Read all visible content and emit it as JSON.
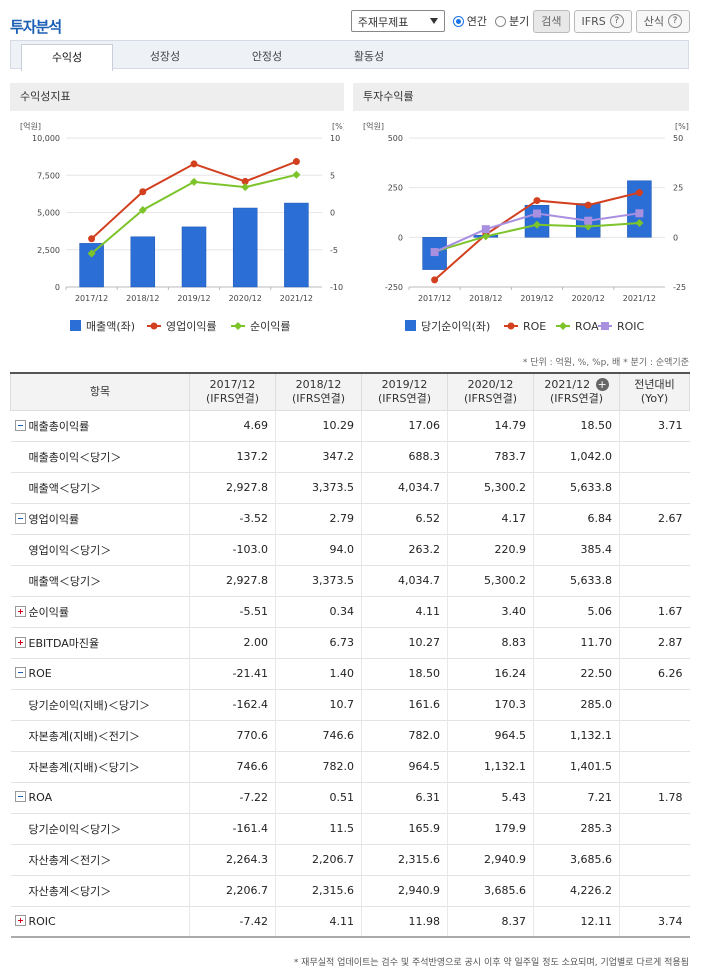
{
  "page": {
    "title": "투자분석"
  },
  "controls": {
    "statement_select": "주재무제표",
    "radio_annual": "연간",
    "radio_quarter": "분기",
    "search_button": "검색",
    "ifrs_button": "IFRS",
    "formula_button": "산식"
  },
  "tabs": [
    "수익성",
    "성장성",
    "안정성",
    "활동성"
  ],
  "chart_left": {
    "header": "수익성지표",
    "unit_left": "[억원]",
    "unit_right": "[%]",
    "legend": [
      "매출액(좌)",
      "영업이익률",
      "순이익률"
    ]
  },
  "chart_right": {
    "header": "투자수익률",
    "unit_left": "[억원]",
    "unit_right": "[%]",
    "legend": [
      "당기순이익(좌)",
      "ROE",
      "ROA",
      "ROIC"
    ]
  },
  "chart_data": [
    {
      "type": "bar+line",
      "title": "수익성지표",
      "categories": [
        "2017/12",
        "2018/12",
        "2019/12",
        "2020/12",
        "2021/12"
      ],
      "ylim_left": [
        0,
        10000
      ],
      "ylim_right": [
        -10,
        10
      ],
      "yticks_left": [
        "0",
        "2,500",
        "5,000",
        "7,500",
        "10,000"
      ],
      "yticks_right": [
        "-10",
        "-5",
        "0",
        "5",
        "10"
      ],
      "bar_series": {
        "name": "매출액(좌)",
        "values": [
          2927.8,
          3373.5,
          4034.7,
          5300.2,
          5633.8
        ],
        "color": "#2b6fd6"
      },
      "line_series": [
        {
          "name": "영업이익률",
          "values": [
            -3.52,
            2.79,
            6.52,
            4.17,
            6.84
          ],
          "color": "#d2401f"
        },
        {
          "name": "순이익률",
          "values": [
            -5.51,
            0.34,
            4.11,
            3.4,
            5.06
          ],
          "color": "#7cc42a"
        }
      ]
    },
    {
      "type": "bar+line",
      "title": "투자수익률",
      "categories": [
        "2017/12",
        "2018/12",
        "2019/12",
        "2020/12",
        "2021/12"
      ],
      "ylim_left": [
        -250,
        500
      ],
      "ylim_right": [
        -25,
        50
      ],
      "yticks_left": [
        "-250",
        "0",
        "250",
        "500"
      ],
      "yticks_right": [
        "-25",
        "0",
        "25",
        "50"
      ],
      "bar_series": {
        "name": "당기순이익(좌)",
        "values": [
          -162.4,
          10.7,
          161.6,
          170.3,
          285.0
        ],
        "color": "#2b6fd6"
      },
      "line_series": [
        {
          "name": "ROE",
          "values": [
            -21.41,
            1.4,
            18.5,
            16.24,
            22.5
          ],
          "color": "#d2401f"
        },
        {
          "name": "ROA",
          "values": [
            -7.22,
            0.51,
            6.31,
            5.43,
            7.21
          ],
          "color": "#7cc42a"
        },
        {
          "name": "ROIC",
          "values": [
            -7.42,
            4.11,
            11.98,
            8.37,
            12.11
          ],
          "color": "#a98fe0"
        }
      ]
    }
  ],
  "unit_note": "* 단위 : 억원, %, %p, 배   * 분기 : 순액기준",
  "table": {
    "item_header": "항목",
    "columns": [
      {
        "year": "2017/12",
        "basis": "(IFRS연결)"
      },
      {
        "year": "2018/12",
        "basis": "(IFRS연결)"
      },
      {
        "year": "2019/12",
        "basis": "(IFRS연결)"
      },
      {
        "year": "2020/12",
        "basis": "(IFRS연결)"
      },
      {
        "year": "2021/12",
        "basis": "(IFRS연결)"
      }
    ],
    "yoy_header": {
      "line1": "전년대비",
      "line2": "(YoY)"
    },
    "rows": [
      {
        "label": "매출총이익률",
        "toggle": "minus",
        "values": [
          "4.69",
          "10.29",
          "17.06",
          "14.79",
          "18.50"
        ],
        "yoy": "3.71"
      },
      {
        "label": "매출총이익＜당기＞",
        "sub": true,
        "values": [
          "137.2",
          "347.2",
          "688.3",
          "783.7",
          "1,042.0"
        ],
        "yoy": ""
      },
      {
        "label": "매출액＜당기＞",
        "sub": true,
        "values": [
          "2,927.8",
          "3,373.5",
          "4,034.7",
          "5,300.2",
          "5,633.8"
        ],
        "yoy": ""
      },
      {
        "label": "영업이익률",
        "toggle": "minus",
        "values": [
          "-3.52",
          "2.79",
          "6.52",
          "4.17",
          "6.84"
        ],
        "yoy": "2.67"
      },
      {
        "label": "영업이익＜당기＞",
        "sub": true,
        "values": [
          "-103.0",
          "94.0",
          "263.2",
          "220.9",
          "385.4"
        ],
        "yoy": ""
      },
      {
        "label": "매출액＜당기＞",
        "sub": true,
        "values": [
          "2,927.8",
          "3,373.5",
          "4,034.7",
          "5,300.2",
          "5,633.8"
        ],
        "yoy": ""
      },
      {
        "label": "순이익률",
        "toggle": "plus",
        "values": [
          "-5.51",
          "0.34",
          "4.11",
          "3.40",
          "5.06"
        ],
        "yoy": "1.67"
      },
      {
        "label": "EBITDA마진율",
        "toggle": "plus",
        "values": [
          "2.00",
          "6.73",
          "10.27",
          "8.83",
          "11.70"
        ],
        "yoy": "2.87"
      },
      {
        "label": "ROE",
        "toggle": "minus",
        "values": [
          "-21.41",
          "1.40",
          "18.50",
          "16.24",
          "22.50"
        ],
        "yoy": "6.26"
      },
      {
        "label": "당기순이익(지배)＜당기＞",
        "sub": true,
        "values": [
          "-162.4",
          "10.7",
          "161.6",
          "170.3",
          "285.0"
        ],
        "yoy": ""
      },
      {
        "label": "자본총계(지배)＜전기＞",
        "sub": true,
        "values": [
          "770.6",
          "746.6",
          "782.0",
          "964.5",
          "1,132.1"
        ],
        "yoy": ""
      },
      {
        "label": "자본총계(지배)＜당기＞",
        "sub": true,
        "values": [
          "746.6",
          "782.0",
          "964.5",
          "1,132.1",
          "1,401.5"
        ],
        "yoy": ""
      },
      {
        "label": "ROA",
        "toggle": "minus",
        "values": [
          "-7.22",
          "0.51",
          "6.31",
          "5.43",
          "7.21"
        ],
        "yoy": "1.78"
      },
      {
        "label": "당기순이익＜당기＞",
        "sub": true,
        "values": [
          "-161.4",
          "11.5",
          "165.9",
          "179.9",
          "285.3"
        ],
        "yoy": ""
      },
      {
        "label": "자산총계＜전기＞",
        "sub": true,
        "values": [
          "2,264.3",
          "2,206.7",
          "2,315.6",
          "2,940.9",
          "3,685.6"
        ],
        "yoy": ""
      },
      {
        "label": "자산총계＜당기＞",
        "sub": true,
        "values": [
          "2,206.7",
          "2,315.6",
          "2,940.9",
          "3,685.6",
          "4,226.2"
        ],
        "yoy": ""
      },
      {
        "label": "ROIC",
        "toggle": "plus",
        "values": [
          "-7.42",
          "4.11",
          "11.98",
          "8.37",
          "12.11"
        ],
        "yoy": "3.74"
      }
    ]
  },
  "footnote": "* 재무실적 업데이트는 검수 및 주석반영으로 공시 이후 약 일주일 정도 소요되며, 기업별로 다르게 적용됨"
}
